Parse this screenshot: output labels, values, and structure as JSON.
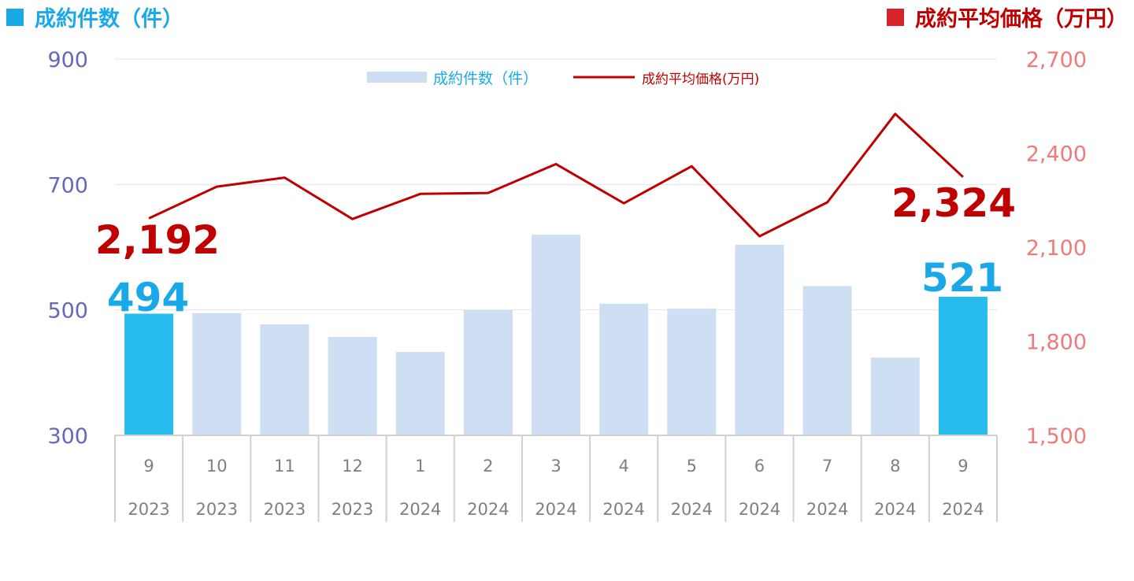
{
  "header": {
    "left_title": "成約件数（件）",
    "right_title": "成約平均価格（万円）"
  },
  "colors": {
    "bar": "#cfdff3",
    "bar_highlight": "#27bbee",
    "line": "#c00000",
    "left_axis": "#6666bb",
    "right_axis": "#f07a7a",
    "count_label": "#1aa9e8",
    "price_label": "#c00000"
  },
  "chart_data": {
    "type": "bar",
    "months": [
      "9",
      "10",
      "11",
      "12",
      "1",
      "2",
      "3",
      "4",
      "5",
      "6",
      "7",
      "8",
      "9"
    ],
    "years": [
      "2023",
      "2023",
      "2023",
      "2023",
      "2024",
      "2024",
      "2024",
      "2024",
      "2024",
      "2024",
      "2024",
      "2024",
      "2024"
    ],
    "highlight_indices": [
      0,
      12
    ],
    "legend": {
      "bar_label": "成約件数（件）",
      "line_label": "成約平均価格(万円)",
      "placement": "top-center"
    },
    "left_axis": {
      "min": 300,
      "max": 900,
      "ticks": [
        "300",
        "500",
        "700",
        "900"
      ],
      "tick_values": [
        300,
        500,
        700,
        900
      ]
    },
    "right_axis": {
      "min": 1500,
      "max": 2700,
      "ticks": [
        "1,500",
        "1,800",
        "2,100",
        "2,400",
        "2,700"
      ],
      "tick_values": [
        1500,
        1800,
        2100,
        2400,
        2700
      ]
    },
    "gridlines": true,
    "series": [
      {
        "name": "成約件数（件）",
        "type": "bar",
        "axis": "left",
        "values": [
          494,
          495,
          477,
          457,
          433,
          500,
          620,
          510,
          502,
          604,
          538,
          424,
          521
        ]
      },
      {
        "name": "成約平均価格(万円)",
        "type": "line",
        "axis": "right",
        "values": [
          2192,
          2293,
          2322,
          2190,
          2270,
          2273,
          2365,
          2240,
          2358,
          2135,
          2243,
          2525,
          2324
        ]
      }
    ],
    "annotations": {
      "first_count": "494",
      "last_count": "521",
      "first_price": "2,192",
      "last_price": "2,324"
    }
  }
}
